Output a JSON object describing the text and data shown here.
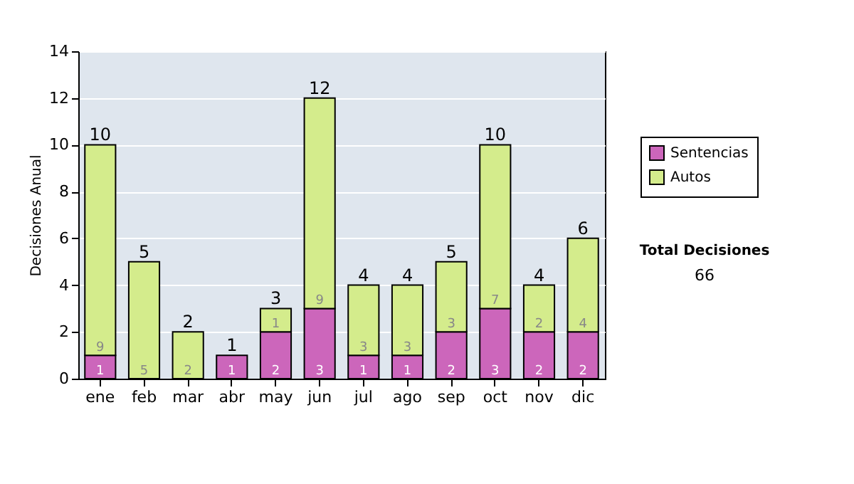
{
  "chart_data": {
    "type": "bar",
    "stacked": true,
    "ylabel": "Decisiones Anual",
    "categories": [
      "ene",
      "feb",
      "mar",
      "abr",
      "may",
      "jun",
      "jul",
      "ago",
      "sep",
      "oct",
      "nov",
      "dic"
    ],
    "series": [
      {
        "name": "Sentencias",
        "color": "#cc66bb",
        "values": [
          1,
          0,
          0,
          1,
          2,
          3,
          1,
          1,
          2,
          3,
          2,
          2
        ],
        "value_labels": [
          "1",
          null,
          null,
          "1",
          "2",
          "3",
          "1",
          "1",
          "2",
          "3",
          "2",
          "2"
        ]
      },
      {
        "name": "Autos",
        "color": "#d4ec8c",
        "values": [
          9,
          5,
          2,
          0,
          1,
          9,
          3,
          3,
          3,
          7,
          2,
          4
        ],
        "value_labels": [
          "9",
          "5",
          "2",
          null,
          "1",
          "9",
          "3",
          "3",
          "3",
          "7",
          "2",
          "4"
        ]
      }
    ],
    "totals": [
      "10",
      "5",
      "2",
      "1",
      "3",
      "12",
      "4",
      "4",
      "5",
      "10",
      "4",
      "6"
    ],
    "ylim": [
      0,
      14
    ],
    "yticks": [
      0,
      2,
      4,
      6,
      8,
      10,
      12,
      14
    ],
    "grid": "y",
    "legend": "right",
    "annotations": [
      "Total Decisiones",
      "66"
    ]
  }
}
